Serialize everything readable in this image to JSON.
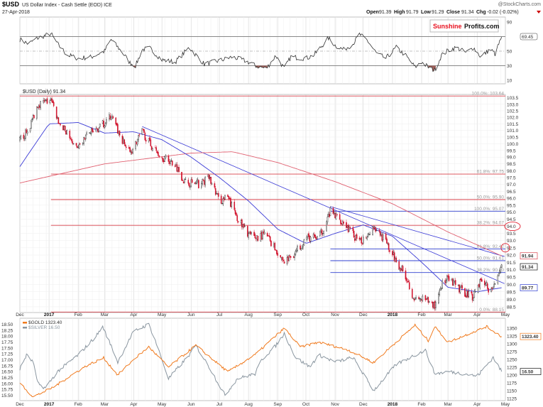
{
  "header": {
    "symbol": "$USD",
    "name": "US Dollar Index - Cash Settle (EOD) ICE",
    "date": "27-Apr-2018",
    "source": "@StockCharts.com",
    "open_label": "Open",
    "open": "91.39",
    "high_label": "High",
    "high": "91.79",
    "low_label": "Low",
    "low": "91.29",
    "close_label": "Close",
    "close": "91.34",
    "chg_label": "Chg",
    "chg": "-0.02 (-0.02%)",
    "logo_part1": "Sunshine",
    "logo_part2": "Profits.com"
  },
  "colors": {
    "up": "#222222",
    "down": "#d0102a",
    "ma50": "#3b3bd6",
    "ma200": "#e06070",
    "gold": "#f07a1e",
    "silver": "#8a96a0",
    "fib_red": "#d8404a",
    "fib_blue": "#3040d0",
    "rsi_fill": "#a0605a"
  },
  "chart_data": [
    {
      "type": "line",
      "panel": "rsi",
      "yticks": [
        "90",
        "50",
        "30",
        "10"
      ],
      "ylim": [
        0,
        100
      ],
      "levels": [
        70,
        50,
        30
      ],
      "last_value_label": "69.45",
      "series": [
        {
          "values": [
            [
              "2016-12-01",
              66
            ],
            [
              "2016-12-10",
              60
            ],
            [
              "2016-12-20",
              68
            ],
            [
              "2017-01-03",
              74
            ],
            [
              "2017-01-10",
              60
            ],
            [
              "2017-01-20",
              45
            ],
            [
              "2017-02-01",
              40
            ],
            [
              "2017-02-15",
              42
            ],
            [
              "2017-03-01",
              50
            ],
            [
              "2017-03-08",
              66
            ],
            [
              "2017-03-20",
              48
            ],
            [
              "2017-03-28",
              34
            ],
            [
              "2017-04-03",
              30
            ],
            [
              "2017-04-10",
              52
            ],
            [
              "2017-04-18",
              54
            ],
            [
              "2017-05-01",
              38
            ],
            [
              "2017-05-15",
              35
            ],
            [
              "2017-05-30",
              55
            ],
            [
              "2017-06-15",
              32
            ],
            [
              "2017-07-01",
              37
            ],
            [
              "2017-07-15",
              42
            ],
            [
              "2017-07-30",
              36
            ],
            [
              "2017-08-08",
              30
            ],
            [
              "2017-08-20",
              26
            ],
            [
              "2017-08-30",
              44
            ],
            [
              "2017-09-08",
              26
            ],
            [
              "2017-09-15",
              42
            ],
            [
              "2017-10-01",
              40
            ],
            [
              "2017-10-10",
              45
            ],
            [
              "2017-10-25",
              68
            ],
            [
              "2017-11-01",
              58
            ],
            [
              "2017-11-10",
              52
            ],
            [
              "2017-11-20",
              60
            ],
            [
              "2017-11-27",
              73
            ],
            [
              "2017-12-05",
              65
            ],
            [
              "2017-12-15",
              47
            ],
            [
              "2017-12-25",
              40
            ],
            [
              "2018-01-05",
              55
            ],
            [
              "2018-01-15",
              44
            ],
            [
              "2018-01-25",
              28
            ],
            [
              "2018-02-01",
              35
            ],
            [
              "2018-02-10",
              26
            ],
            [
              "2018-02-15",
              24
            ],
            [
              "2018-02-22",
              44
            ],
            [
              "2018-03-01",
              51
            ],
            [
              "2018-03-10",
              55
            ],
            [
              "2018-03-20",
              48
            ],
            [
              "2018-03-28",
              55
            ],
            [
              "2018-04-05",
              42
            ],
            [
              "2018-04-15",
              53
            ],
            [
              "2018-04-20",
              46
            ],
            [
              "2018-04-27",
              69.45
            ]
          ]
        }
      ]
    },
    {
      "type": "candlestick",
      "panel": "price",
      "legend": "$USD (Daily) 91.34",
      "scale": "log",
      "ylim": [
        88.2,
        103.8
      ],
      "yticks": [
        "103.5",
        "103.0",
        "102.5",
        "102.0",
        "101.5",
        "101.0",
        "100.5",
        "100.0",
        "99.5",
        "99.0",
        "98.5",
        "98.0",
        "97.5",
        "97.0",
        "96.5",
        "96.0",
        "95.5",
        "95.0",
        "94.5",
        "94.0",
        "93.5",
        "93.0",
        "92.5",
        "92.0",
        "91.5",
        "91.0",
        "90.5",
        "90.0",
        "89.5",
        "89.0",
        "88.5"
      ],
      "close_series": [
        [
          "2016-12-01",
          100.3
        ],
        [
          "2016-12-10",
          101.0
        ],
        [
          "2016-12-20",
          103.0
        ],
        [
          "2017-01-03",
          103.3
        ],
        [
          "2017-01-12",
          101.5
        ],
        [
          "2017-01-20",
          100.8
        ],
        [
          "2017-02-01",
          99.5
        ],
        [
          "2017-02-10",
          100.7
        ],
        [
          "2017-02-20",
          101.0
        ],
        [
          "2017-03-01",
          101.6
        ],
        [
          "2017-03-08",
          102.1
        ],
        [
          "2017-03-20",
          100.2
        ],
        [
          "2017-03-28",
          99.3
        ],
        [
          "2017-04-10",
          100.9
        ],
        [
          "2017-04-20",
          99.8
        ],
        [
          "2017-05-01",
          99.0
        ],
        [
          "2017-05-15",
          98.5
        ],
        [
          "2017-05-25",
          97.2
        ],
        [
          "2017-06-10",
          97.0
        ],
        [
          "2017-06-20",
          97.5
        ],
        [
          "2017-07-01",
          95.8
        ],
        [
          "2017-07-10",
          96.0
        ],
        [
          "2017-07-25",
          94.0
        ],
        [
          "2017-08-05",
          93.2
        ],
        [
          "2017-08-20",
          93.4
        ],
        [
          "2017-09-08",
          91.5
        ],
        [
          "2017-09-20",
          92.2
        ],
        [
          "2017-10-01",
          93.2
        ],
        [
          "2017-10-15",
          93.2
        ],
        [
          "2017-10-27",
          95.0
        ],
        [
          "2017-11-10",
          94.3
        ],
        [
          "2017-11-27",
          92.8
        ],
        [
          "2017-12-12",
          94.0
        ],
        [
          "2017-12-20",
          93.4
        ],
        [
          "2018-01-01",
          92.0
        ],
        [
          "2018-01-15",
          90.6
        ],
        [
          "2018-01-25",
          88.9
        ],
        [
          "2018-02-01",
          89.0
        ],
        [
          "2018-02-15",
          88.6
        ],
        [
          "2018-02-22",
          90.0
        ],
        [
          "2018-03-01",
          90.3
        ],
        [
          "2018-03-15",
          89.6
        ],
        [
          "2018-03-27",
          89.2
        ],
        [
          "2018-04-05",
          90.3
        ],
        [
          "2018-04-17",
          89.5
        ],
        [
          "2018-04-20",
          90.3
        ],
        [
          "2018-04-27",
          91.34
        ]
      ],
      "ma50": [
        [
          "2016-12-01",
          98.3
        ],
        [
          "2017-01-01",
          101.5
        ],
        [
          "2017-02-01",
          101.6
        ],
        [
          "2017-03-01",
          100.8
        ],
        [
          "2017-04-01",
          100.9
        ],
        [
          "2017-05-01",
          100.3
        ],
        [
          "2017-06-01",
          99.0
        ],
        [
          "2017-07-01",
          97.5
        ],
        [
          "2017-08-01",
          95.8
        ],
        [
          "2017-09-01",
          93.8
        ],
        [
          "2017-10-01",
          92.8
        ],
        [
          "2017-11-01",
          93.5
        ],
        [
          "2017-12-01",
          94.1
        ],
        [
          "2018-01-01",
          93.3
        ],
        [
          "2018-02-01",
          91.5
        ],
        [
          "2018-03-01",
          89.8
        ],
        [
          "2018-04-01",
          89.5
        ],
        [
          "2018-04-27",
          89.77
        ]
      ],
      "ma200": [
        [
          "2016-12-01",
          97.1
        ],
        [
          "2017-03-01",
          98.5
        ],
        [
          "2017-06-01",
          99.3
        ],
        [
          "2017-07-15",
          99.4
        ],
        [
          "2017-09-01",
          98.6
        ],
        [
          "2017-11-01",
          97.2
        ],
        [
          "2018-01-01",
          95.6
        ],
        [
          "2018-03-01",
          93.6
        ],
        [
          "2018-04-27",
          91.94
        ]
      ],
      "trendlines": [
        [
          [
            "2017-04-10",
            101.3
          ],
          [
            "2018-04-30",
            90.05
          ]
        ],
        [
          [
            "2017-10-27",
            95.4
          ],
          [
            "2018-04-30",
            91.9
          ]
        ]
      ],
      "fib_levels": [
        {
          "label": "100.0%: 103.64",
          "value": 103.64,
          "from": "2016-12-01",
          "color": "red"
        },
        {
          "label": "61.8%: 97.75",
          "value": 97.75,
          "from": "2017-01-03",
          "color": "red"
        },
        {
          "label": "50.0%: 95.90",
          "value": 95.9,
          "from": "2017-01-03",
          "color": "red"
        },
        {
          "label": "100.0%: 95.07",
          "value": 95.07,
          "from": "2017-10-27",
          "color": "blue"
        },
        {
          "label": "38.2%: 94.07",
          "value": 94.07,
          "from": "2017-01-03",
          "color": "red"
        },
        {
          "label": "61.8%: 92.42",
          "value": 92.42,
          "from": "2017-10-27",
          "color": "blue"
        },
        {
          "label": "50.0%: 91.61",
          "value": 91.61,
          "from": "2017-10-27",
          "color": "blue"
        },
        {
          "label": "38.2%: 90.80",
          "value": 90.8,
          "from": "2017-10-27",
          "color": "blue"
        },
        {
          "label": "0.0%: 88.15",
          "value": 88.15,
          "from": "2017-01-03",
          "color": "red"
        }
      ],
      "value_boxes": [
        {
          "label": "91.94",
          "value": 91.94,
          "color": "red"
        },
        {
          "label": "91.34",
          "value": 91.34,
          "color": "black"
        },
        {
          "label": "89.77",
          "value": 89.77,
          "color": "blue"
        }
      ],
      "circled_levels": [
        94.0,
        92.5
      ]
    },
    {
      "type": "line",
      "panel": "gold-silver",
      "series": [
        {
          "name": "$GOLD 1323.40",
          "axis": "right",
          "values": [
            [
              "2016-12-01",
              1175
            ],
            [
              "2016-12-15",
              1130
            ],
            [
              "2017-01-05",
              1160
            ],
            [
              "2017-01-25",
              1200
            ],
            [
              "2017-02-10",
              1230
            ],
            [
              "2017-02-28",
              1255
            ],
            [
              "2017-03-15",
              1200
            ],
            [
              "2017-04-01",
              1250
            ],
            [
              "2017-04-17",
              1290
            ],
            [
              "2017-05-08",
              1225
            ],
            [
              "2017-06-06",
              1295
            ],
            [
              "2017-07-10",
              1210
            ],
            [
              "2017-08-08",
              1265
            ],
            [
              "2017-09-08",
              1350
            ],
            [
              "2017-09-25",
              1290
            ],
            [
              "2017-10-15",
              1305
            ],
            [
              "2017-11-15",
              1280
            ],
            [
              "2017-12-12",
              1240
            ],
            [
              "2018-01-25",
              1360
            ],
            [
              "2018-02-08",
              1310
            ],
            [
              "2018-02-15",
              1355
            ],
            [
              "2018-03-01",
              1305
            ],
            [
              "2018-04-11",
              1355
            ],
            [
              "2018-04-27",
              1323.4
            ]
          ]
        },
        {
          "name": "$SILVER 16.50",
          "axis": "left",
          "values": [
            [
              "2016-12-01",
              16.6
            ],
            [
              "2016-12-08",
              17.2
            ],
            [
              "2016-12-15",
              16.9
            ],
            [
              "2016-12-20",
              16.0
            ],
            [
              "2016-12-28",
              15.8
            ],
            [
              "2017-01-10",
              16.5
            ],
            [
              "2017-02-01",
              17.2
            ],
            [
              "2017-02-20",
              18.0
            ],
            [
              "2017-02-27",
              18.4
            ],
            [
              "2017-03-10",
              17.4
            ],
            [
              "2017-03-15",
              16.9
            ],
            [
              "2017-04-01",
              18.2
            ],
            [
              "2017-04-17",
              18.5
            ],
            [
              "2017-04-24",
              17.8
            ],
            [
              "2017-05-08",
              16.2
            ],
            [
              "2017-05-30",
              17.2
            ],
            [
              "2017-06-06",
              17.6
            ],
            [
              "2017-06-20",
              16.7
            ],
            [
              "2017-07-07",
              15.5
            ],
            [
              "2017-07-20",
              16.2
            ],
            [
              "2017-08-08",
              16.4
            ],
            [
              "2017-08-15",
              17.0
            ],
            [
              "2017-08-30",
              17.6
            ],
            [
              "2017-09-08",
              18.1
            ],
            [
              "2017-09-20",
              17.1
            ],
            [
              "2017-10-05",
              16.7
            ],
            [
              "2017-10-15",
              17.2
            ],
            [
              "2017-11-01",
              16.9
            ],
            [
              "2017-11-20",
              17.1
            ],
            [
              "2017-12-12",
              15.7
            ],
            [
              "2018-01-05",
              16.8
            ],
            [
              "2018-01-25",
              17.2
            ],
            [
              "2018-02-05",
              17.4
            ],
            [
              "2018-02-15",
              16.4
            ],
            [
              "2018-03-01",
              16.5
            ],
            [
              "2018-03-20",
              16.4
            ],
            [
              "2018-04-01",
              16.3
            ],
            [
              "2018-04-18",
              17.1
            ],
            [
              "2018-04-27",
              16.5
            ]
          ]
        }
      ],
      "left_ticks": [
        "18.50",
        "18.25",
        "18.00",
        "17.75",
        "17.50",
        "17.25",
        "17.00",
        "16.75",
        "16.50",
        "16.25",
        "16.00",
        "15.75",
        "15.50"
      ],
      "right_ticks": [
        "1350",
        "1325",
        "1300",
        "1275",
        "1250",
        "1225",
        "1200",
        "1175",
        "1150",
        "1125"
      ],
      "value_boxes": [
        {
          "label": "1323.40",
          "value": 1323.4,
          "color": "gold"
        },
        {
          "label": "16.50",
          "value": 16.5,
          "color": "black"
        }
      ]
    }
  ],
  "xaxis": {
    "labels": [
      [
        "Dec",
        "2016-12-01"
      ],
      [
        "2017",
        "2017-01-01"
      ],
      [
        "Feb",
        "2017-02-01"
      ],
      [
        "Mar",
        "2017-03-01"
      ],
      [
        "Apr",
        "2017-04-01"
      ],
      [
        "May",
        "2017-05-01"
      ],
      [
        "Jun",
        "2017-06-01"
      ],
      [
        "Jul",
        "2017-07-01"
      ],
      [
        "Aug",
        "2017-08-01"
      ],
      [
        "Sep",
        "2017-09-01"
      ],
      [
        "Oct",
        "2017-10-01"
      ],
      [
        "Nov",
        "2017-11-01"
      ],
      [
        "Dec",
        "2017-12-01"
      ],
      [
        "2018",
        "2018-01-01"
      ],
      [
        "Feb",
        "2018-02-01"
      ],
      [
        "Mar",
        "2018-03-01"
      ],
      [
        "Apr",
        "2018-04-01"
      ],
      [
        "May",
        "2018-05-01"
      ]
    ]
  }
}
